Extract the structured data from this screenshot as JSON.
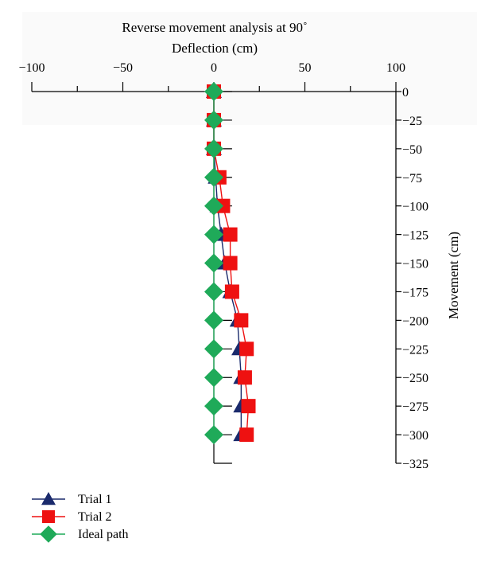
{
  "chart_data": {
    "type": "line",
    "title": "Reverse movement analysis at 90˚",
    "xlabel": "Deflection (cm)",
    "ylabel": "Movement (cm)",
    "xlim": [
      -100,
      100
    ],
    "ylim": [
      -325,
      0
    ],
    "x_ticks": [
      -100,
      -50,
      0,
      50,
      100
    ],
    "y_ticks": [
      0,
      -25,
      -50,
      -75,
      -100,
      -125,
      -150,
      -175,
      -200,
      -225,
      -250,
      -275,
      -300,
      -325
    ],
    "x_axis_position": "top",
    "y_axis_position": "right",
    "grid": false,
    "legend_position": "bottom-left",
    "series": [
      {
        "name": "Trial 1",
        "color": "#1a2a6c",
        "marker": "triangle",
        "points": [
          [
            0,
            0
          ],
          [
            0,
            -25
          ],
          [
            0,
            -50
          ],
          [
            1,
            -75
          ],
          [
            2,
            -100
          ],
          [
            4,
            -125
          ],
          [
            6,
            -150
          ],
          [
            9,
            -175
          ],
          [
            13,
            -200
          ],
          [
            14,
            -225
          ],
          [
            15,
            -250
          ],
          [
            15,
            -275
          ],
          [
            15,
            -300
          ]
        ]
      },
      {
        "name": "Trial 2",
        "color": "#ee1111",
        "marker": "square",
        "points": [
          [
            0,
            0
          ],
          [
            0,
            -25
          ],
          [
            0,
            -50
          ],
          [
            3,
            -75
          ],
          [
            5,
            -100
          ],
          [
            9,
            -125
          ],
          [
            9,
            -150
          ],
          [
            10,
            -175
          ],
          [
            15,
            -200
          ],
          [
            18,
            -225
          ],
          [
            17,
            -250
          ],
          [
            19,
            -275
          ],
          [
            18,
            -300
          ]
        ]
      },
      {
        "name": "Ideal path",
        "color": "#1faa59",
        "marker": "diamond",
        "points": [
          [
            0,
            0
          ],
          [
            0,
            -25
          ],
          [
            0,
            -50
          ],
          [
            0,
            -75
          ],
          [
            0,
            -100
          ],
          [
            0,
            -125
          ],
          [
            0,
            -150
          ],
          [
            0,
            -175
          ],
          [
            0,
            -200
          ],
          [
            0,
            -225
          ],
          [
            0,
            -250
          ],
          [
            0,
            -275
          ],
          [
            0,
            -300
          ]
        ]
      }
    ]
  }
}
